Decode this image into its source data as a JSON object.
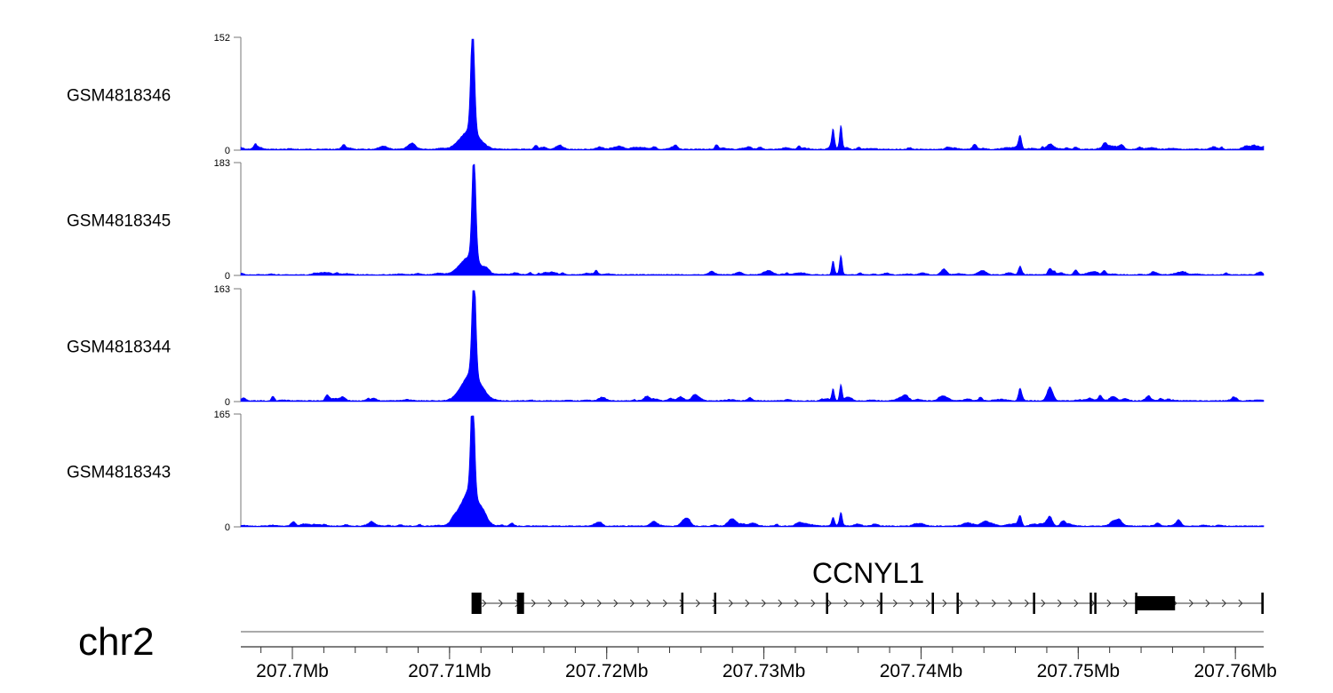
{
  "chart_data": {
    "type": "area",
    "title": "",
    "chromosome": "chr2",
    "xlim_mb": [
      207.69672,
      207.7618
    ],
    "x_ticks": [
      {
        "value": 207.7,
        "label": "207.7Mb"
      },
      {
        "value": 207.71,
        "label": "207.71Mb"
      },
      {
        "value": 207.72,
        "label": "207.72Mb"
      },
      {
        "value": 207.73,
        "label": "207.73Mb"
      },
      {
        "value": 207.74,
        "label": "207.74Mb"
      },
      {
        "value": 207.75,
        "label": "207.75Mb"
      },
      {
        "value": 207.76,
        "label": "207.76Mb"
      }
    ],
    "minor_tick_step_mb": 0.002,
    "fill_color": "#0000ff",
    "series": [
      {
        "name": "GSM4818346",
        "ylim": [
          0,
          152
        ],
        "ymax_label": "152",
        "ymin_label": "0",
        "peaks": [
          [
            207.71147,
            150,
            0.00012
          ],
          [
            207.7113,
            26,
            0.0006
          ],
          [
            207.7344,
            22,
            8e-05
          ],
          [
            207.7349,
            33,
            8e-05
          ],
          [
            207.7463,
            18,
            0.0001
          ],
          [
            207.7482,
            7,
            0.0002
          ]
        ]
      },
      {
        "name": "GSM4818345",
        "ylim": [
          0,
          183
        ],
        "ymax_label": "183",
        "ymin_label": "0",
        "peaks": [
          [
            207.71155,
            180,
            0.00012
          ],
          [
            207.7113,
            30,
            0.0006
          ],
          [
            207.7344,
            22,
            8e-05
          ],
          [
            207.7349,
            32,
            8e-05
          ],
          [
            207.7463,
            13,
            0.0001
          ],
          [
            207.7482,
            11,
            0.00012
          ]
        ]
      },
      {
        "name": "GSM4818344",
        "ylim": [
          0,
          163
        ],
        "ymax_label": "163",
        "ymin_label": "0",
        "peaks": [
          [
            207.71155,
            160,
            0.00012
          ],
          [
            207.7114,
            40,
            0.0006
          ],
          [
            207.7344,
            18,
            8e-05
          ],
          [
            207.7349,
            24,
            8e-05
          ],
          [
            207.7463,
            18,
            0.0001
          ],
          [
            207.7482,
            20,
            0.00018
          ]
        ]
      },
      {
        "name": "GSM4818343",
        "ylim": [
          0,
          165
        ],
        "ymax_label": "165",
        "ymin_label": "0",
        "peaks": [
          [
            207.71147,
            162,
            0.00012
          ],
          [
            207.7113,
            50,
            0.0006
          ],
          [
            207.7344,
            13,
            9e-05
          ],
          [
            207.7349,
            18,
            8e-05
          ],
          [
            207.7463,
            14,
            0.0001
          ],
          [
            207.7482,
            14,
            0.00015
          ]
        ]
      }
    ],
    "gene": {
      "name": "CCNYL1",
      "strand": "+",
      "start_mb": 207.71158,
      "end_mb": 207.7617,
      "exons_mb": [
        [
          207.7114,
          207.71203
        ],
        [
          207.71429,
          207.71474
        ],
        [
          207.72474,
          207.7248
        ],
        [
          207.72683,
          207.72689
        ],
        [
          207.73395,
          207.73402
        ],
        [
          207.7374,
          207.73746
        ],
        [
          207.74068,
          207.74074
        ],
        [
          207.74226,
          207.74233
        ],
        [
          207.74712,
          207.74719
        ],
        [
          207.75073,
          207.75079
        ],
        [
          207.75102,
          207.75109
        ],
        [
          207.75362,
          207.75616
        ],
        [
          207.76165,
          207.7618
        ]
      ]
    }
  }
}
